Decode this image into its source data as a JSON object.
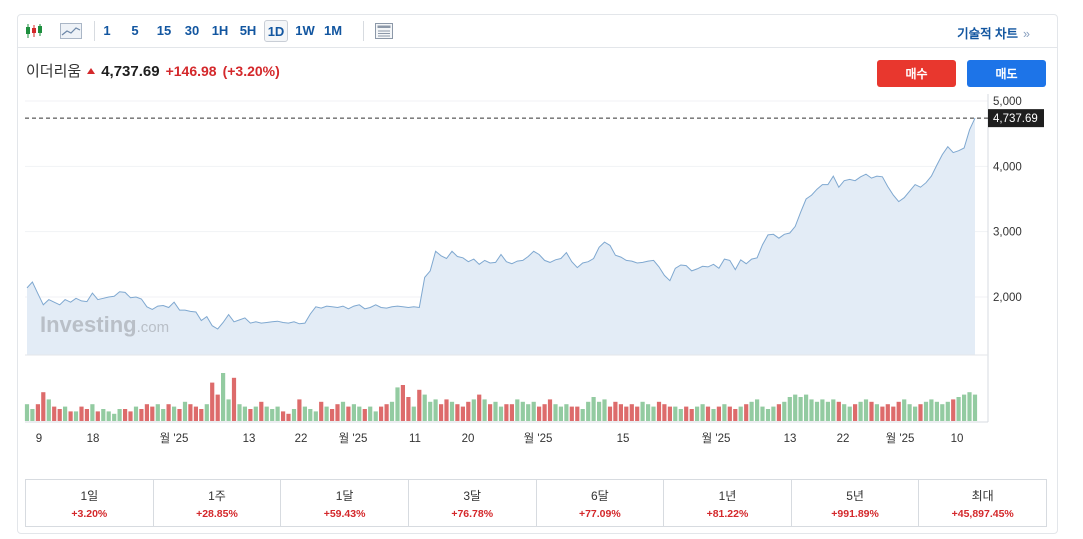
{
  "toolbar": {
    "candlestick_icon": "candlestick-icon",
    "area_icon": "area-chart-icon",
    "intervals": [
      "1",
      "5",
      "15",
      "30",
      "1H",
      "5H",
      "1D",
      "1W",
      "1M"
    ],
    "active_interval": "1D",
    "table_icon": "table-view-icon",
    "tech_chart_label": "기술적 차트",
    "tech_chart_arrow": "»"
  },
  "quote": {
    "name": "이더리움",
    "price": "4,737.69",
    "change": "+146.98",
    "change_pct": "(+3.20%)"
  },
  "buttons": {
    "buy": "매수",
    "sell": "매도"
  },
  "watermark": {
    "main": "Investing",
    "suffix": ".com"
  },
  "chart_data": {
    "type": "area",
    "current_price_label": "4,737.69",
    "current_price": 4737.69,
    "y_ticks": [
      {
        "value": 5000,
        "label": "5,000"
      },
      {
        "value": 4000,
        "label": "4,000"
      },
      {
        "value": 3000,
        "label": "3,000"
      },
      {
        "value": 2000,
        "label": "2,000"
      }
    ],
    "ylim": [
      1100,
      5100
    ],
    "x_ticks": [
      "9",
      "18",
      "월 '25",
      "13",
      "22",
      "월 '25",
      "11",
      "20",
      "월 '25",
      "15",
      "월 '25",
      "13",
      "22",
      "월 '25",
      "10"
    ],
    "series": [
      {
        "values": [
          2140,
          2230,
          2050,
          1880,
          1960,
          1920,
          1880,
          1960,
          1920,
          1980,
          1940,
          1930,
          2060,
          1960,
          1980,
          2000,
          2010,
          2080,
          2070,
          1990,
          2000,
          1970,
          1850,
          1810,
          1860,
          1870,
          1840,
          1920,
          1800,
          1800,
          1780,
          1770,
          1640,
          1700,
          1560,
          1510,
          1610,
          1730,
          1620,
          1650,
          1680,
          1600,
          1620,
          1600,
          1610,
          1620,
          1630,
          1610,
          1600,
          1620,
          1590,
          1600,
          1740,
          1850,
          1830,
          1860,
          1850,
          1840,
          1860,
          1820,
          1860,
          1880,
          1820,
          1840,
          1880,
          1840,
          1830,
          1850,
          1860,
          1850,
          1840,
          1850,
          1840,
          2300,
          2400,
          2700,
          2630,
          2590,
          2700,
          2620,
          2600,
          2540,
          2580,
          2500,
          2560,
          2520,
          2530,
          2650,
          2540,
          2510,
          2550,
          2560,
          2620,
          2700,
          2650,
          2560,
          2530,
          2570,
          2590,
          2680,
          2540,
          2450,
          2520,
          2540,
          2590,
          2760,
          2840,
          2790,
          2640,
          2610,
          2560,
          2550,
          2520,
          2530,
          2550,
          2560,
          2460,
          2330,
          2250,
          2440,
          2490,
          2480,
          2400,
          2430,
          2470,
          2460,
          2500,
          2440,
          2580,
          2560,
          2420,
          2570,
          2510,
          2580,
          2600,
          2800,
          2950,
          2960,
          2900,
          2960,
          2980,
          3080,
          3300,
          3500,
          3560,
          3650,
          3720,
          3720,
          3850,
          3680,
          3780,
          3800,
          3780,
          3840,
          3880,
          3820,
          3850,
          3840,
          3690,
          3560,
          3460,
          3520,
          3620,
          3720,
          3680,
          3750,
          3850,
          4020,
          4180,
          4300,
          4210,
          4240,
          4280,
          4560,
          4737.69
        ],
        "volumes": [
          0.35,
          0.25,
          0.35,
          0.6,
          0.45,
          0.3,
          0.25,
          0.3,
          0.2,
          0.2,
          0.3,
          0.25,
          0.35,
          0.2,
          0.25,
          0.2,
          0.15,
          0.25,
          0.25,
          0.2,
          0.3,
          0.25,
          0.35,
          0.3,
          0.35,
          0.25,
          0.35,
          0.3,
          0.25,
          0.4,
          0.35,
          0.3,
          0.25,
          0.35,
          0.8,
          0.55,
          1.0,
          0.45,
          0.9,
          0.35,
          0.3,
          0.25,
          0.3,
          0.4,
          0.3,
          0.25,
          0.3,
          0.2,
          0.15,
          0.25,
          0.45,
          0.3,
          0.25,
          0.2,
          0.4,
          0.3,
          0.25,
          0.35,
          0.4,
          0.3,
          0.35,
          0.3,
          0.25,
          0.3,
          0.2,
          0.3,
          0.35,
          0.4,
          0.7,
          0.75,
          0.5,
          0.3,
          0.65,
          0.55,
          0.4,
          0.45,
          0.35,
          0.45,
          0.4,
          0.35,
          0.3,
          0.4,
          0.45,
          0.55,
          0.45,
          0.35,
          0.4,
          0.3,
          0.35,
          0.35,
          0.45,
          0.4,
          0.35,
          0.4,
          0.3,
          0.35,
          0.45,
          0.35,
          0.3,
          0.35,
          0.3,
          0.3,
          0.25,
          0.4,
          0.5,
          0.4,
          0.45,
          0.3,
          0.4,
          0.35,
          0.3,
          0.35,
          0.3,
          0.4,
          0.35,
          0.3,
          0.4,
          0.35,
          0.3,
          0.3,
          0.25,
          0.3,
          0.25,
          0.3,
          0.35,
          0.3,
          0.25,
          0.3,
          0.35,
          0.3,
          0.25,
          0.3,
          0.35,
          0.4,
          0.45,
          0.3,
          0.25,
          0.3,
          0.35,
          0.4,
          0.5,
          0.55,
          0.5,
          0.55,
          0.45,
          0.4,
          0.45,
          0.4,
          0.45,
          0.4,
          0.35,
          0.3,
          0.35,
          0.4,
          0.45,
          0.4,
          0.35,
          0.3,
          0.35,
          0.3,
          0.4,
          0.45,
          0.35,
          0.3,
          0.35,
          0.4,
          0.45,
          0.4,
          0.35,
          0.4,
          0.45,
          0.5,
          0.55,
          0.6,
          0.55
        ],
        "volume_up_color": "#93cba1",
        "volume_down_color": "#dd6b6b"
      }
    ],
    "line_color": "#7fa8d0",
    "fill_color": "#e3ecf6"
  },
  "performance": [
    {
      "label": "1일",
      "value": "+3.20%"
    },
    {
      "label": "1주",
      "value": "+28.85%"
    },
    {
      "label": "1달",
      "value": "+59.43%"
    },
    {
      "label": "3달",
      "value": "+76.78%"
    },
    {
      "label": "6달",
      "value": "+77.09%"
    },
    {
      "label": "1년",
      "value": "+81.22%"
    },
    {
      "label": "5년",
      "value": "+991.89%"
    },
    {
      "label": "최대",
      "value": "+45,897.45%"
    }
  ]
}
